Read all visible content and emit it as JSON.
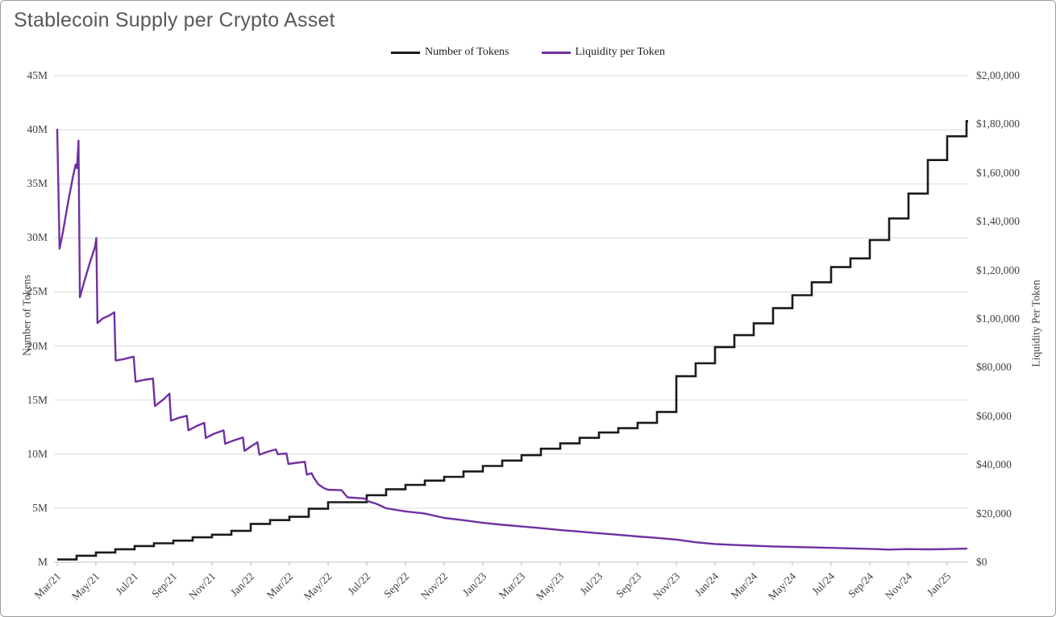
{
  "chart_data": {
    "type": "line",
    "title": "Stablecoin Supply per Crypto Asset",
    "legend_position": "top-center",
    "gridlines": "horizontal-left-axis",
    "x_months_total": 48,
    "x_start": "Mar/21",
    "x_tick_labels": [
      "Mar/21",
      "May/21",
      "Jul/21",
      "Sep/21",
      "Nov/21",
      "Jan/22",
      "Mar/22",
      "May/22",
      "Jul/22",
      "Sep/22",
      "Nov/22",
      "Jan/23",
      "Mar/23",
      "May/23",
      "Jul/23",
      "Sep/23",
      "Nov/23",
      "Jan/24",
      "Mar/24",
      "May/24",
      "Jul/24",
      "Sep/24",
      "Nov/24",
      "Jan/25"
    ],
    "left_axis": {
      "label": "Number of Tokens",
      "range_millions": [
        0,
        45
      ],
      "tick_labels": [
        "45M",
        "40M",
        "35M",
        "30M",
        "25M",
        "20M",
        "15M",
        "10M",
        "5M",
        "M"
      ]
    },
    "right_axis": {
      "label": "Liquidity Per Token",
      "range_usd": [
        0,
        200000
      ],
      "tick_labels": [
        "$2,00,000",
        "$1,80,000",
        "$1,60,000",
        "$1,40,000",
        "$1,20,000",
        "$1,00,000",
        "$80,000",
        "$60,000",
        "$40,000",
        "$20,000",
        "$0"
      ]
    },
    "series": [
      {
        "name": "Number of Tokens",
        "axis": "left",
        "color": "#1a1a1a",
        "shape": "step",
        "unit": "millions of tokens",
        "monthly_values_from_mar21": [
          0.25,
          0.6,
          0.9,
          1.2,
          1.5,
          1.75,
          2.0,
          2.3,
          2.55,
          2.9,
          3.55,
          3.9,
          4.2,
          4.95,
          5.55,
          5.55,
          6.2,
          6.75,
          7.15,
          7.55,
          7.9,
          8.4,
          8.9,
          9.4,
          9.9,
          10.5,
          11.0,
          11.5,
          12.0,
          12.4,
          12.9,
          13.9,
          17.2,
          18.4,
          19.9,
          21.0,
          22.1,
          23.5,
          24.7,
          25.9,
          27.3,
          28.1,
          29.8,
          31.8,
          34.1,
          37.2,
          39.4,
          40.8
        ]
      },
      {
        "name": "Liquidity per Token",
        "axis": "right",
        "color": "#7030a0",
        "shape": "line",
        "unit": "usd",
        "points_month_usd": [
          [
            0,
            177800
          ],
          [
            0.12,
            128900
          ],
          [
            0.3,
            136000
          ],
          [
            0.55,
            147500
          ],
          [
            0.8,
            158000
          ],
          [
            0.95,
            163500
          ],
          [
            1.02,
            162000
          ],
          [
            1.1,
            173300
          ],
          [
            1.17,
            108900
          ],
          [
            1.4,
            115500
          ],
          [
            1.7,
            123500
          ],
          [
            1.95,
            129500
          ],
          [
            2.02,
            133300
          ],
          [
            2.08,
            98300
          ],
          [
            2.35,
            100200
          ],
          [
            2.7,
            101500
          ],
          [
            2.95,
            102700
          ],
          [
            3.02,
            82900
          ],
          [
            3.4,
            83400
          ],
          [
            3.95,
            84500
          ],
          [
            4.05,
            74200
          ],
          [
            4.5,
            75000
          ],
          [
            4.95,
            75500
          ],
          [
            5.05,
            64200
          ],
          [
            5.5,
            67000
          ],
          [
            5.8,
            69300
          ],
          [
            5.88,
            58200
          ],
          [
            6.3,
            59400
          ],
          [
            6.7,
            60200
          ],
          [
            6.78,
            54200
          ],
          [
            7.2,
            56000
          ],
          [
            7.6,
            57300
          ],
          [
            7.68,
            51100
          ],
          [
            8.1,
            52800
          ],
          [
            8.6,
            54200
          ],
          [
            8.68,
            48700
          ],
          [
            9.1,
            50000
          ],
          [
            9.6,
            51300
          ],
          [
            9.68,
            45800
          ],
          [
            10.0,
            47500
          ],
          [
            10.35,
            49300
          ],
          [
            10.45,
            44200
          ],
          [
            10.9,
            45500
          ],
          [
            11.3,
            46400
          ],
          [
            11.4,
            44400
          ],
          [
            11.85,
            44700
          ],
          [
            11.95,
            40400
          ],
          [
            12.4,
            40900
          ],
          [
            12.8,
            41300
          ],
          [
            12.9,
            36000
          ],
          [
            13.15,
            36600
          ],
          [
            13.25,
            34900
          ],
          [
            13.5,
            32000
          ],
          [
            13.8,
            30400
          ],
          [
            14.0,
            29800
          ],
          [
            14.7,
            29600
          ],
          [
            15.0,
            26700
          ],
          [
            15.9,
            26200
          ],
          [
            16.05,
            25100
          ],
          [
            16.5,
            24000
          ],
          [
            17.0,
            22200
          ],
          [
            18.0,
            20900
          ],
          [
            19.0,
            20000
          ],
          [
            20.0,
            18200
          ],
          [
            21.0,
            17300
          ],
          [
            22.0,
            16200
          ],
          [
            23.0,
            15400
          ],
          [
            24.0,
            14700
          ],
          [
            25.0,
            14000
          ],
          [
            26.0,
            13200
          ],
          [
            27.0,
            12600
          ],
          [
            28.0,
            11900
          ],
          [
            29.0,
            11300
          ],
          [
            30.0,
            10600
          ],
          [
            31.0,
            10000
          ],
          [
            32.0,
            9300
          ],
          [
            33.0,
            8200
          ],
          [
            34.0,
            7500
          ],
          [
            35.0,
            7100
          ],
          [
            36.0,
            6800
          ],
          [
            37.0,
            6500
          ],
          [
            38.0,
            6300
          ],
          [
            39.0,
            6100
          ],
          [
            40.0,
            5900
          ],
          [
            41.0,
            5700
          ],
          [
            42.0,
            5500
          ],
          [
            43.0,
            5200
          ],
          [
            44.0,
            5400
          ],
          [
            45.0,
            5300
          ],
          [
            46.0,
            5400
          ],
          [
            47.0,
            5600
          ]
        ]
      }
    ]
  }
}
